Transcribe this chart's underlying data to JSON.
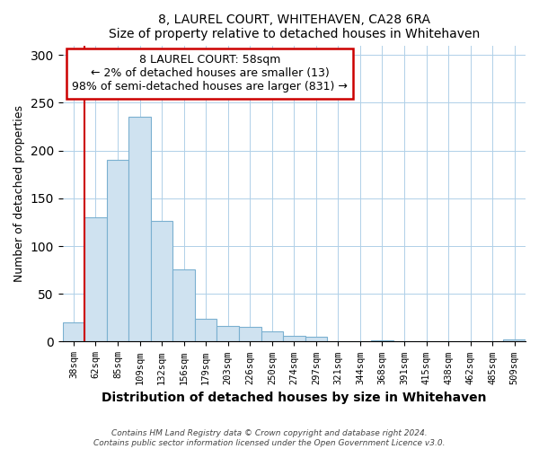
{
  "title": "8, LAUREL COURT, WHITEHAVEN, CA28 6RA",
  "subtitle": "Size of property relative to detached houses in Whitehaven",
  "xlabel": "Distribution of detached houses by size in Whitehaven",
  "ylabel": "Number of detached properties",
  "bar_labels": [
    "38sqm",
    "62sqm",
    "85sqm",
    "109sqm",
    "132sqm",
    "156sqm",
    "179sqm",
    "203sqm",
    "226sqm",
    "250sqm",
    "274sqm",
    "297sqm",
    "321sqm",
    "344sqm",
    "368sqm",
    "391sqm",
    "415sqm",
    "438sqm",
    "462sqm",
    "485sqm",
    "509sqm"
  ],
  "bar_values": [
    20,
    130,
    190,
    235,
    126,
    76,
    24,
    16,
    15,
    11,
    6,
    5,
    0,
    0,
    1,
    0,
    0,
    0,
    0,
    0,
    2
  ],
  "bar_color": "#cfe2f0",
  "bar_edge_color": "#7ab0d0",
  "marker_color": "#cc0000",
  "annotation_title": "8 LAUREL COURT: 58sqm",
  "annotation_line1": "← 2% of detached houses are smaller (13)",
  "annotation_line2": "98% of semi-detached houses are larger (831) →",
  "annotation_box_color": "#ffffff",
  "annotation_box_edge": "#cc0000",
  "ylim": [
    0,
    310
  ],
  "yticks": [
    0,
    50,
    100,
    150,
    200,
    250,
    300
  ],
  "footer1": "Contains HM Land Registry data © Crown copyright and database right 2024.",
  "footer2": "Contains public sector information licensed under the Open Government Licence v3.0."
}
